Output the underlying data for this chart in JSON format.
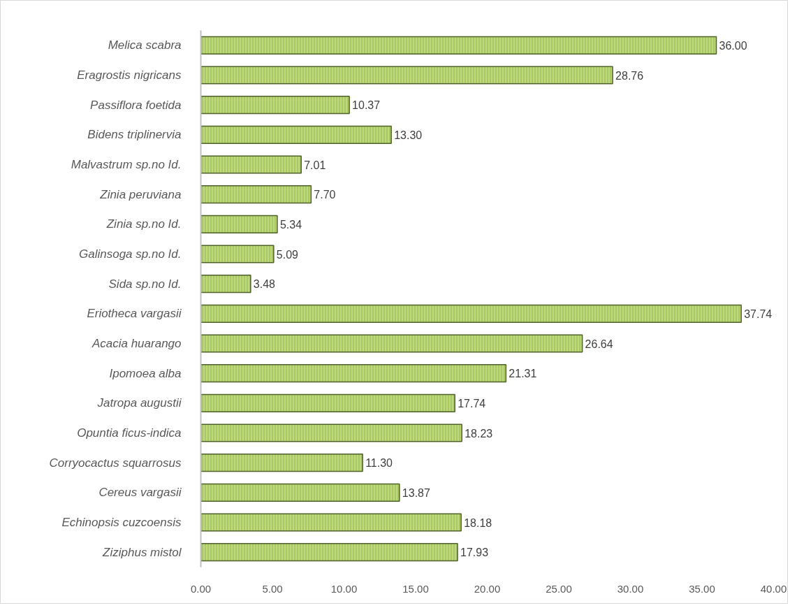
{
  "chart_data": {
    "type": "bar",
    "orientation": "horizontal",
    "categories": [
      "Melica scabra",
      "Eragrostis nigricans",
      "Passiflora foetida",
      "Bidens triplinervia",
      "Malvastrum sp.no Id.",
      "Zinia peruviana",
      "Zinia sp.no Id.",
      "Galinsoga sp.no Id.",
      "Sida sp.no Id.",
      "Eriotheca vargasii",
      "Acacia huarango",
      "Ipomoea alba",
      "Jatropa augustii",
      "Opuntia ficus-indica",
      "Corryocactus squarrosus",
      "Cereus vargasii",
      "Echinopsis cuzcoensis",
      "Ziziphus mistol"
    ],
    "values": [
      36.0,
      28.76,
      10.37,
      13.3,
      7.01,
      7.7,
      5.34,
      5.09,
      3.48,
      37.74,
      26.64,
      21.31,
      17.74,
      18.23,
      11.3,
      13.87,
      18.18,
      17.93
    ],
    "value_labels": [
      "36.00",
      "28.76",
      "10.37",
      "13.30",
      "7.01",
      "7.70",
      "5.34",
      "5.09",
      "3.48",
      "37.74",
      "26.64",
      "21.31",
      "17.74",
      "18.23",
      "11.30",
      "13.87",
      "18.18",
      "17.93"
    ],
    "color": "#a9c95f",
    "xlim": [
      0,
      40
    ],
    "xticks": [
      {
        "value": 0,
        "label": "0.00"
      },
      {
        "value": 5,
        "label": "5.00"
      },
      {
        "value": 10,
        "label": "10.00"
      },
      {
        "value": 15,
        "label": "15.00"
      },
      {
        "value": 20,
        "label": "20.00"
      },
      {
        "value": 25,
        "label": "25.00"
      },
      {
        "value": 30,
        "label": "30.00"
      },
      {
        "value": 35,
        "label": "35.00"
      },
      {
        "value": 40,
        "label": "40.00"
      }
    ],
    "grid": false
  }
}
